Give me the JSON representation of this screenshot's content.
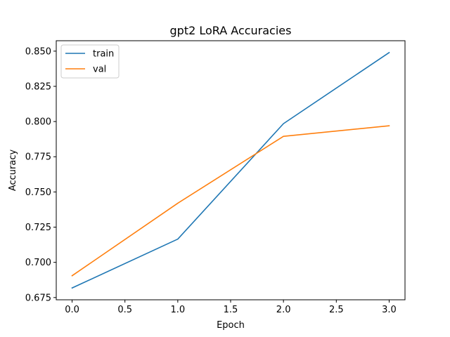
{
  "chart_data": {
    "type": "line",
    "title": "gpt2 LoRA  Accuracies",
    "xlabel": "Epoch",
    "ylabel": "Accuracy",
    "x": [
      0,
      1,
      2,
      3
    ],
    "xlim": [
      -0.15,
      3.15
    ],
    "ylim": [
      0.6734,
      0.8574
    ],
    "xticks": [
      0.0,
      0.5,
      1.0,
      1.5,
      2.0,
      2.5,
      3.0
    ],
    "xtick_labels": [
      "0.0",
      "0.5",
      "1.0",
      "1.5",
      "2.0",
      "2.5",
      "3.0"
    ],
    "yticks": [
      0.675,
      0.7,
      0.725,
      0.75,
      0.775,
      0.8,
      0.825,
      0.85
    ],
    "ytick_labels": [
      "0.675",
      "0.700",
      "0.725",
      "0.750",
      "0.775",
      "0.800",
      "0.825",
      "0.850"
    ],
    "grid": false,
    "legend_position": "top-left",
    "series": [
      {
        "name": "train",
        "color": "#1f77b4",
        "values": [
          0.6818,
          0.7165,
          0.7985,
          0.849
        ]
      },
      {
        "name": "val",
        "color": "#ff7f0e",
        "values": [
          0.6905,
          0.742,
          0.7895,
          0.797
        ]
      }
    ]
  }
}
